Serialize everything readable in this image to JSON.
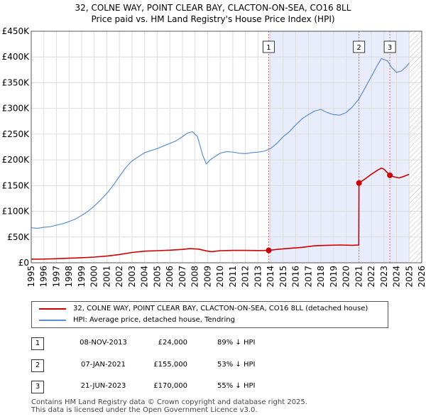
{
  "title_line1": "32, COLNE WAY, POINT CLEAR BAY, CLACTON-ON-SEA, CO16 8LL",
  "title_line2": "Price paid vs. HM Land Registry's House Price Index (HPI)",
  "chart_data": {
    "type": "line",
    "title": "32, COLNE WAY, POINT CLEAR BAY, CLACTON-ON-SEA, CO16 8LL - Price paid vs. HM Land Registry's House Price Index (HPI)",
    "xlim": [
      1995,
      2026
    ],
    "ylim": [
      0,
      450000
    ],
    "x_ticks": [
      1995,
      1996,
      1997,
      1998,
      1999,
      2000,
      2001,
      2002,
      2003,
      2004,
      2005,
      2006,
      2007,
      2008,
      2009,
      2010,
      2011,
      2012,
      2013,
      2014,
      2015,
      2016,
      2017,
      2018,
      2019,
      2020,
      2021,
      2022,
      2023,
      2024,
      2025,
      2026
    ],
    "x_tick_labels": [
      "1995",
      "1996",
      "1997",
      "1998",
      "1999",
      "2000",
      "2001",
      "2002",
      "2003",
      "2004",
      "2005",
      "2006",
      "2007",
      "2008",
      "2009",
      "2010",
      "2011",
      "2012",
      "2013",
      "2014",
      "2015",
      "2016",
      "2017",
      "2018",
      "2019",
      "2020",
      "2021",
      "2022",
      "2023",
      "2024",
      "2025",
      "2026"
    ],
    "y_ticks": [
      0,
      50000,
      100000,
      150000,
      200000,
      250000,
      300000,
      350000,
      400000,
      450000
    ],
    "y_tick_labels": [
      "£0",
      "£50K",
      "£100K",
      "£150K",
      "£200K",
      "£250K",
      "£300K",
      "£350K",
      "£400K",
      "£450K"
    ],
    "shaded_span": [
      2013.85,
      2025.0
    ],
    "hatched_span": [
      2025.0,
      2026
    ],
    "series": [
      {
        "name": "32, COLNE WAY, POINT CLEAR BAY, CLACTON-ON-SEA, CO16 8LL (detached house)",
        "color": "#cc0000",
        "x": [
          1995.0,
          1996.0,
          1997.0,
          1998.0,
          1999.0,
          2000.0,
          2001.0,
          2002.0,
          2003.0,
          2004.0,
          2005.0,
          2006.0,
          2007.0,
          2007.6,
          2008.3,
          2008.9,
          2009.3,
          2010.0,
          2011.0,
          2012.0,
          2013.0,
          2013.85,
          2014.5,
          2015.5,
          2016.5,
          2017.5,
          2018.5,
          2019.5,
          2020.5,
          2021.0,
          2021.02,
          2021.5,
          2022.0,
          2022.5,
          2022.8,
          2023.0,
          2023.47,
          2023.8,
          2024.2,
          2024.6,
          2025.0
        ],
        "values": [
          7000,
          7200,
          7800,
          8800,
          9800,
          11000,
          13000,
          16000,
          20000,
          22500,
          23500,
          24500,
          26000,
          27500,
          26500,
          23000,
          21500,
          23500,
          24000,
          24000,
          23800,
          24000,
          26000,
          28000,
          30000,
          33000,
          34000,
          34500,
          34000,
          34500,
          155000,
          163000,
          172000,
          180000,
          184000,
          182000,
          170000,
          167000,
          165000,
          168000,
          172000
        ]
      },
      {
        "name": "HPI: Average price, detached house, Tendring",
        "color": "#5b8fd4",
        "x": [
          1995.0,
          1995.5,
          1996.0,
          1996.5,
          1997.0,
          1997.5,
          1998.0,
          1998.5,
          1999.0,
          1999.5,
          2000.0,
          2000.5,
          2001.0,
          2001.5,
          2002.0,
          2002.5,
          2003.0,
          2003.5,
          2004.0,
          2004.5,
          2005.0,
          2005.5,
          2006.0,
          2006.5,
          2007.0,
          2007.4,
          2007.8,
          2008.2,
          2008.6,
          2008.9,
          2009.2,
          2009.5,
          2010.0,
          2010.5,
          2011.0,
          2011.5,
          2012.0,
          2012.5,
          2013.0,
          2013.5,
          2014.0,
          2014.5,
          2015.0,
          2015.5,
          2016.0,
          2016.5,
          2017.0,
          2017.5,
          2018.0,
          2018.5,
          2019.0,
          2019.5,
          2020.0,
          2020.5,
          2021.0,
          2021.5,
          2022.0,
          2022.5,
          2022.8,
          2023.0,
          2023.3,
          2023.6,
          2024.0,
          2024.4,
          2024.8,
          2025.0
        ],
        "values": [
          68000,
          67000,
          69000,
          70000,
          73000,
          76000,
          80000,
          85000,
          92000,
          100000,
          110000,
          122000,
          135000,
          150000,
          168000,
          185000,
          198000,
          206000,
          214000,
          218000,
          222000,
          227000,
          232000,
          237000,
          245000,
          252000,
          255000,
          245000,
          210000,
          192000,
          200000,
          205000,
          213000,
          216000,
          215000,
          213000,
          212000,
          214000,
          215000,
          217000,
          222000,
          232000,
          245000,
          255000,
          268000,
          280000,
          288000,
          295000,
          298000,
          292000,
          288000,
          287000,
          292000,
          303000,
          318000,
          340000,
          362000,
          385000,
          397000,
          395000,
          392000,
          380000,
          370000,
          373000,
          382000,
          388000
        ]
      }
    ],
    "transactions": [
      {
        "marker": "1",
        "x": 2013.85,
        "value": 24000
      },
      {
        "marker": "2",
        "x": 2021.02,
        "value": 155000
      },
      {
        "marker": "3",
        "x": 2023.47,
        "value": 170000
      }
    ]
  },
  "legend": {
    "property_label": "32, COLNE WAY, POINT CLEAR BAY, CLACTON-ON-SEA, CO16 8LL (detached house)",
    "hpi_label": "HPI: Average price, detached house, Tendring"
  },
  "sales": [
    {
      "num": "1",
      "date": "08-NOV-2013",
      "price": "£24,000",
      "hpi": "89% ↓ HPI"
    },
    {
      "num": "2",
      "date": "07-JAN-2021",
      "price": "£155,000",
      "hpi": "53% ↓ HPI"
    },
    {
      "num": "3",
      "date": "21-JUN-2023",
      "price": "£170,000",
      "hpi": "55% ↓ HPI"
    }
  ],
  "footer": {
    "line1": "Contains HM Land Registry data © Crown copyright and database right 2025.",
    "line2": "This data is licensed under the Open Government Licence v3.0."
  }
}
